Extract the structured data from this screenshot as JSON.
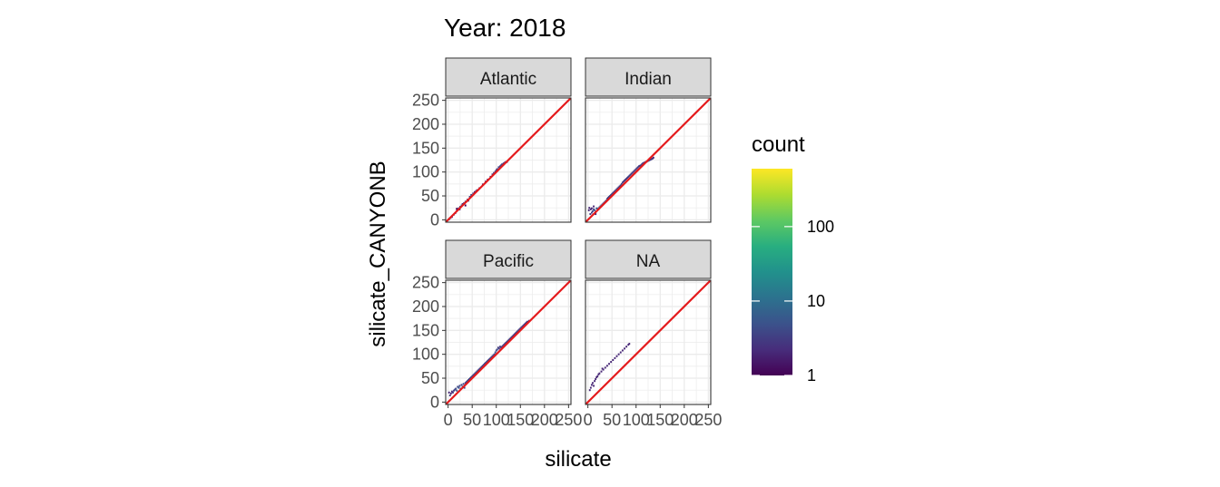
{
  "chart_data": {
    "type": "heatmap",
    "title": "Year: 2018",
    "xlabel": "silicate",
    "ylabel": "silicate_CANYONB",
    "xlim": [
      -5,
      255
    ],
    "ylim": [
      -5,
      255
    ],
    "x_ticks": [
      0,
      50,
      100,
      150,
      200,
      250
    ],
    "y_ticks": [
      0,
      50,
      100,
      150,
      200,
      250
    ],
    "grid": true,
    "reference_line": {
      "slope": 1,
      "intercept": 0,
      "color": "#e41a1c"
    },
    "legend": {
      "title": "count",
      "scale": "log10",
      "range": [
        1,
        600
      ],
      "ticks": [
        1,
        10,
        100
      ],
      "tick_labels": [
        "1",
        "10",
        "100"
      ],
      "colormap": "viridis",
      "position": "right"
    },
    "panels": [
      {
        "name": "Atlantic",
        "bins": [
          [
            2,
            1,
            3
          ],
          [
            5,
            4,
            2
          ],
          [
            8,
            6,
            2
          ],
          [
            12,
            11,
            3
          ],
          [
            15,
            14,
            2
          ],
          [
            18,
            19,
            3
          ],
          [
            22,
            24,
            4
          ],
          [
            25,
            27,
            3
          ],
          [
            28,
            30,
            5
          ],
          [
            30,
            33,
            2
          ],
          [
            33,
            35,
            3
          ],
          [
            36,
            38,
            4
          ],
          [
            40,
            42,
            3
          ],
          [
            42,
            40,
            2
          ],
          [
            45,
            48,
            3
          ],
          [
            48,
            52,
            4
          ],
          [
            52,
            55,
            3
          ],
          [
            55,
            58,
            2
          ],
          [
            58,
            60,
            2
          ],
          [
            60,
            62,
            3
          ],
          [
            65,
            66,
            2
          ],
          [
            72,
            74,
            2
          ],
          [
            78,
            80,
            2
          ],
          [
            82,
            84,
            2
          ],
          [
            88,
            90,
            2
          ],
          [
            92,
            95,
            3
          ],
          [
            95,
            98,
            3
          ],
          [
            98,
            101,
            4
          ],
          [
            100,
            104,
            3
          ],
          [
            102,
            106,
            3
          ],
          [
            105,
            110,
            3
          ],
          [
            108,
            112,
            3
          ],
          [
            110,
            114,
            4
          ],
          [
            112,
            116,
            3
          ],
          [
            115,
            118,
            3
          ],
          [
            118,
            120,
            3
          ],
          [
            120,
            121,
            2
          ],
          [
            122,
            121,
            2
          ],
          [
            36,
            30,
            1
          ],
          [
            20,
            22,
            2
          ],
          [
            18,
            23,
            1
          ],
          [
            24,
            22,
            1
          ]
        ]
      },
      {
        "name": "Indian",
        "bins": [
          [
            2,
            20,
            2
          ],
          [
            3,
            25,
            2
          ],
          [
            5,
            12,
            3
          ],
          [
            6,
            22,
            2
          ],
          [
            8,
            15,
            3
          ],
          [
            10,
            18,
            4
          ],
          [
            12,
            22,
            3
          ],
          [
            14,
            20,
            5
          ],
          [
            16,
            16,
            3
          ],
          [
            18,
            24,
            6
          ],
          [
            20,
            22,
            4
          ],
          [
            22,
            24,
            5
          ],
          [
            24,
            26,
            4
          ],
          [
            26,
            28,
            3
          ],
          [
            28,
            30,
            5
          ],
          [
            30,
            32,
            4
          ],
          [
            32,
            34,
            3
          ],
          [
            34,
            36,
            4
          ],
          [
            36,
            38,
            5
          ],
          [
            38,
            40,
            3
          ],
          [
            40,
            44,
            4
          ],
          [
            42,
            46,
            3
          ],
          [
            44,
            48,
            3
          ],
          [
            46,
            50,
            4
          ],
          [
            48,
            52,
            3
          ],
          [
            50,
            54,
            4
          ],
          [
            52,
            56,
            3
          ],
          [
            54,
            58,
            3
          ],
          [
            56,
            60,
            3
          ],
          [
            58,
            62,
            4
          ],
          [
            60,
            64,
            3
          ],
          [
            62,
            66,
            3
          ],
          [
            64,
            68,
            3
          ],
          [
            66,
            70,
            3
          ],
          [
            68,
            72,
            3
          ],
          [
            70,
            75,
            4
          ],
          [
            72,
            78,
            3
          ],
          [
            74,
            80,
            3
          ],
          [
            76,
            82,
            3
          ],
          [
            78,
            84,
            3
          ],
          [
            80,
            86,
            3
          ],
          [
            82,
            88,
            3
          ],
          [
            84,
            90,
            3
          ],
          [
            86,
            92,
            4
          ],
          [
            88,
            94,
            3
          ],
          [
            90,
            96,
            3
          ],
          [
            92,
            98,
            3
          ],
          [
            94,
            100,
            3
          ],
          [
            96,
            102,
            3
          ],
          [
            98,
            104,
            3
          ],
          [
            100,
            106,
            3
          ],
          [
            102,
            108,
            3
          ],
          [
            104,
            110,
            3
          ],
          [
            106,
            112,
            3
          ],
          [
            108,
            113,
            3
          ],
          [
            110,
            114,
            3
          ],
          [
            112,
            116,
            3
          ],
          [
            114,
            118,
            3
          ],
          [
            116,
            119,
            3
          ],
          [
            118,
            120,
            3
          ],
          [
            120,
            121,
            3
          ],
          [
            122,
            122,
            3
          ],
          [
            124,
            123,
            3
          ],
          [
            126,
            124,
            3
          ],
          [
            128,
            125,
            3
          ],
          [
            130,
            126,
            3
          ],
          [
            132,
            127,
            3
          ],
          [
            134,
            128,
            3
          ],
          [
            136,
            130,
            2
          ],
          [
            8,
            24,
            2
          ],
          [
            12,
            28,
            2
          ],
          [
            16,
            12,
            2
          ]
        ]
      },
      {
        "name": "Pacific",
        "bins": [
          [
            2,
            20,
            2
          ],
          [
            4,
            14,
            3
          ],
          [
            6,
            18,
            2
          ],
          [
            8,
            22,
            2
          ],
          [
            10,
            20,
            3
          ],
          [
            12,
            24,
            3
          ],
          [
            14,
            26,
            4
          ],
          [
            16,
            28,
            4
          ],
          [
            18,
            24,
            5
          ],
          [
            20,
            32,
            4
          ],
          [
            22,
            30,
            5
          ],
          [
            24,
            34,
            4
          ],
          [
            26,
            28,
            5
          ],
          [
            28,
            36,
            4
          ],
          [
            30,
            32,
            5
          ],
          [
            32,
            38,
            4
          ],
          [
            34,
            30,
            4
          ],
          [
            36,
            40,
            3
          ],
          [
            38,
            42,
            3
          ],
          [
            40,
            44,
            4
          ],
          [
            42,
            46,
            4
          ],
          [
            44,
            48,
            3
          ],
          [
            46,
            50,
            4
          ],
          [
            48,
            52,
            3
          ],
          [
            50,
            54,
            4
          ],
          [
            52,
            56,
            3
          ],
          [
            54,
            58,
            3
          ],
          [
            56,
            60,
            4
          ],
          [
            58,
            62,
            3
          ],
          [
            60,
            64,
            4
          ],
          [
            62,
            66,
            3
          ],
          [
            64,
            68,
            3
          ],
          [
            66,
            70,
            3
          ],
          [
            68,
            72,
            4
          ],
          [
            70,
            74,
            3
          ],
          [
            72,
            76,
            3
          ],
          [
            74,
            78,
            4
          ],
          [
            76,
            80,
            3
          ],
          [
            78,
            82,
            3
          ],
          [
            80,
            84,
            4
          ],
          [
            82,
            86,
            3
          ],
          [
            84,
            88,
            3
          ],
          [
            86,
            90,
            3
          ],
          [
            88,
            92,
            4
          ],
          [
            90,
            94,
            3
          ],
          [
            92,
            96,
            3
          ],
          [
            94,
            98,
            4
          ],
          [
            96,
            100,
            4
          ],
          [
            98,
            104,
            5
          ],
          [
            100,
            108,
            4
          ],
          [
            102,
            110,
            4
          ],
          [
            104,
            114,
            3
          ],
          [
            106,
            112,
            3
          ],
          [
            108,
            116,
            3
          ],
          [
            110,
            114,
            3
          ],
          [
            112,
            116,
            3
          ],
          [
            114,
            118,
            3
          ],
          [
            116,
            120,
            3
          ],
          [
            118,
            122,
            3
          ],
          [
            120,
            124,
            3
          ],
          [
            122,
            126,
            3
          ],
          [
            124,
            128,
            3
          ],
          [
            126,
            130,
            3
          ],
          [
            128,
            132,
            3
          ],
          [
            130,
            134,
            3
          ],
          [
            132,
            136,
            3
          ],
          [
            134,
            138,
            3
          ],
          [
            136,
            140,
            3
          ],
          [
            138,
            142,
            3
          ],
          [
            140,
            144,
            3
          ],
          [
            142,
            146,
            3
          ],
          [
            144,
            148,
            3
          ],
          [
            146,
            150,
            3
          ],
          [
            148,
            152,
            3
          ],
          [
            150,
            154,
            3
          ],
          [
            152,
            156,
            3
          ],
          [
            154,
            158,
            3
          ],
          [
            156,
            160,
            3
          ],
          [
            158,
            162,
            3
          ],
          [
            160,
            164,
            3
          ],
          [
            162,
            166,
            3
          ],
          [
            164,
            168,
            3
          ],
          [
            166,
            168,
            2
          ],
          [
            168,
            170,
            2
          ]
        ]
      },
      {
        "name": "NA",
        "bins": [
          [
            4,
            25,
            2
          ],
          [
            6,
            30,
            2
          ],
          [
            8,
            36,
            2
          ],
          [
            10,
            40,
            2
          ],
          [
            12,
            34,
            2
          ],
          [
            14,
            44,
            2
          ],
          [
            16,
            48,
            2
          ],
          [
            18,
            52,
            2
          ],
          [
            20,
            54,
            2
          ],
          [
            22,
            58,
            2
          ],
          [
            24,
            60,
            2
          ],
          [
            28,
            64,
            2
          ],
          [
            32,
            68,
            2
          ],
          [
            36,
            72,
            2
          ],
          [
            40,
            76,
            2
          ],
          [
            44,
            80,
            2
          ],
          [
            48,
            84,
            2
          ],
          [
            52,
            88,
            2
          ],
          [
            56,
            92,
            2
          ],
          [
            60,
            96,
            2
          ],
          [
            64,
            100,
            2
          ],
          [
            68,
            104,
            2
          ],
          [
            72,
            108,
            2
          ],
          [
            76,
            112,
            2
          ],
          [
            80,
            116,
            2
          ],
          [
            84,
            120,
            2
          ],
          [
            86,
            122,
            2
          ],
          [
            30,
            70,
            2
          ]
        ]
      }
    ]
  }
}
